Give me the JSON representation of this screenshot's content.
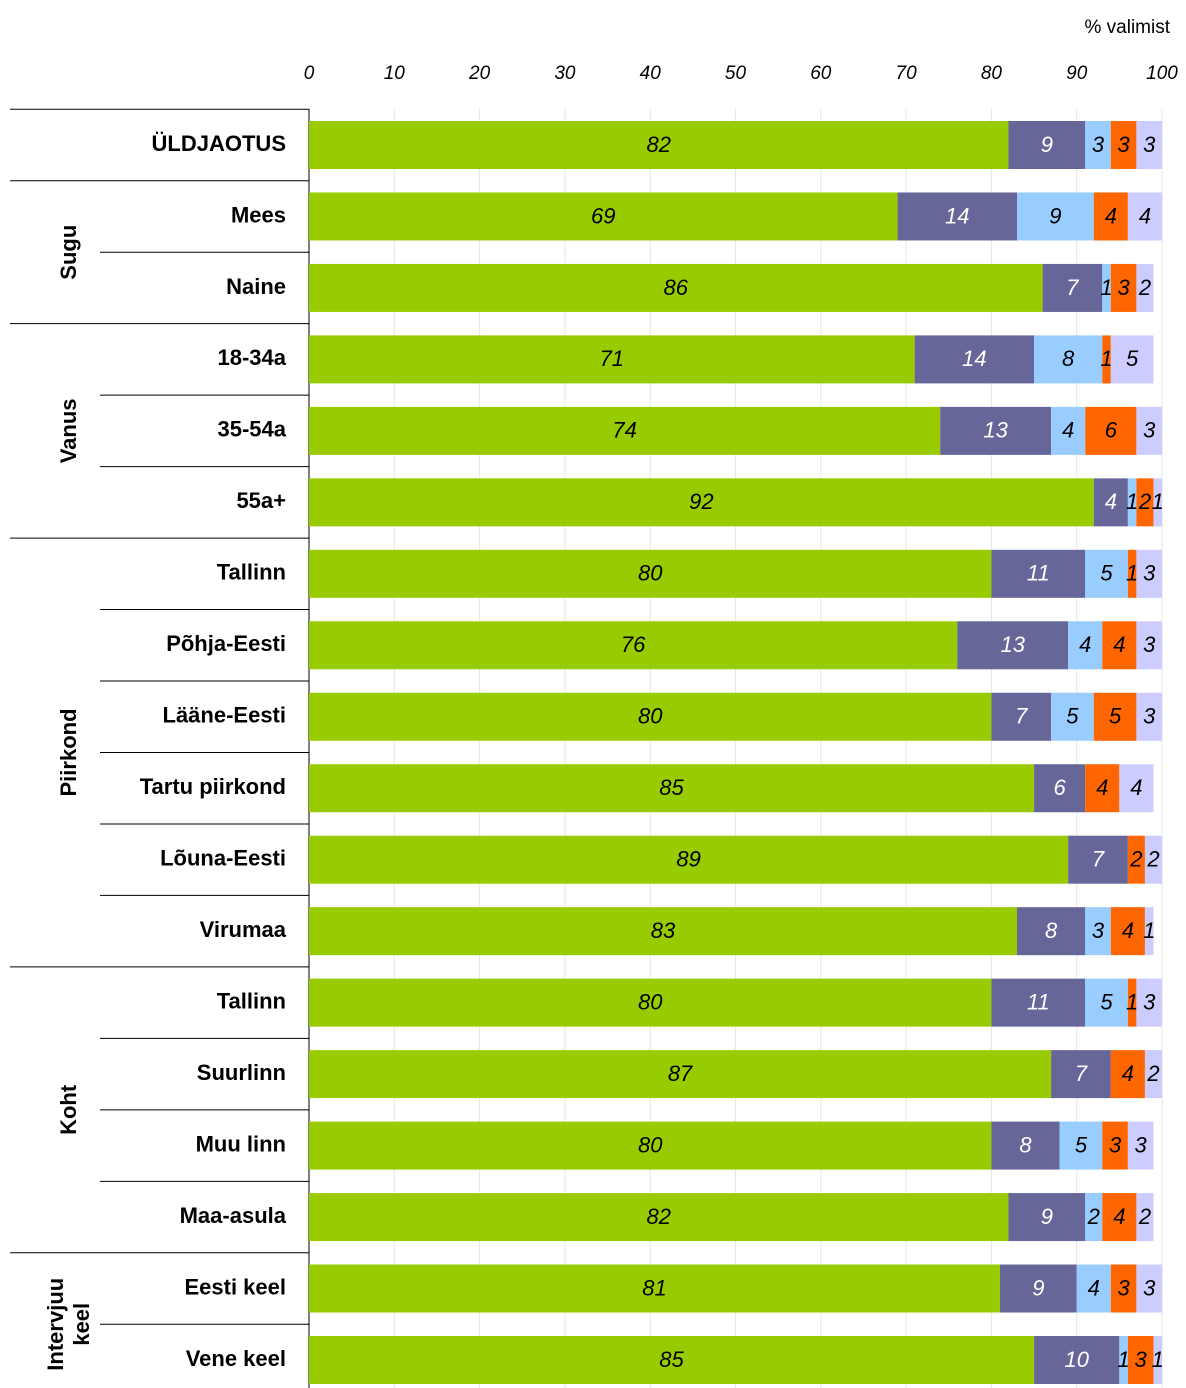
{
  "chart_data": {
    "type": "bar",
    "orientation": "horizontal",
    "stacked": true,
    "xlabel": "% valimist",
    "xlim": [
      0,
      100
    ],
    "xticks": [
      0,
      10,
      20,
      30,
      40,
      50,
      60,
      70,
      80,
      90,
      100
    ],
    "grid": true,
    "categories": [
      "ÜLDJAOTUS",
      "Mees",
      "Naine",
      "18-34a",
      "35-54a",
      "55a+",
      "Tallinn",
      "Põhja-Eesti",
      "Lääne-Eesti",
      "Tartu piirkond",
      "Lõuna-Eesti",
      "Virumaa",
      "Tallinn",
      "Suurlinn",
      "Muu linn",
      "Maa-asula",
      "Eesti keel",
      "Vene keel"
    ],
    "groups": [
      {
        "label": "Sugu",
        "rows": [
          1,
          2
        ]
      },
      {
        "label": "Vanus",
        "rows": [
          3,
          5
        ]
      },
      {
        "label": "Piirkond",
        "rows": [
          6,
          11
        ]
      },
      {
        "label": "Koht",
        "rows": [
          12,
          15
        ]
      },
      {
        "label": "Intervjuu keel",
        "rows": [
          16,
          17
        ]
      }
    ],
    "series": [
      {
        "color": "#99cc00",
        "label_color": "#000000",
        "values": [
          82,
          69,
          86,
          71,
          74,
          92,
          80,
          76,
          80,
          85,
          89,
          83,
          80,
          87,
          80,
          82,
          81,
          85
        ]
      },
      {
        "color": "#666699",
        "label_color": "#ffffff",
        "values": [
          9,
          14,
          7,
          14,
          13,
          4,
          11,
          13,
          7,
          6,
          7,
          8,
          11,
          7,
          8,
          9,
          9,
          10
        ]
      },
      {
        "color": "#99ccff",
        "label_color": "#000000",
        "values": [
          3,
          9,
          1,
          8,
          4,
          1,
          5,
          4,
          5,
          null,
          null,
          3,
          5,
          null,
          5,
          2,
          4,
          1
        ]
      },
      {
        "color": "#ff6600",
        "label_color": "#000000",
        "values": [
          3,
          4,
          3,
          1,
          6,
          2,
          1,
          4,
          5,
          4,
          2,
          4,
          1,
          4,
          3,
          4,
          3,
          3
        ]
      },
      {
        "color": "#ccccff",
        "label_color": "#000000",
        "values": [
          3,
          4,
          2,
          5,
          3,
          1,
          3,
          3,
          3,
          4,
          2,
          1,
          3,
          2,
          3,
          2,
          3,
          1
        ]
      }
    ]
  }
}
